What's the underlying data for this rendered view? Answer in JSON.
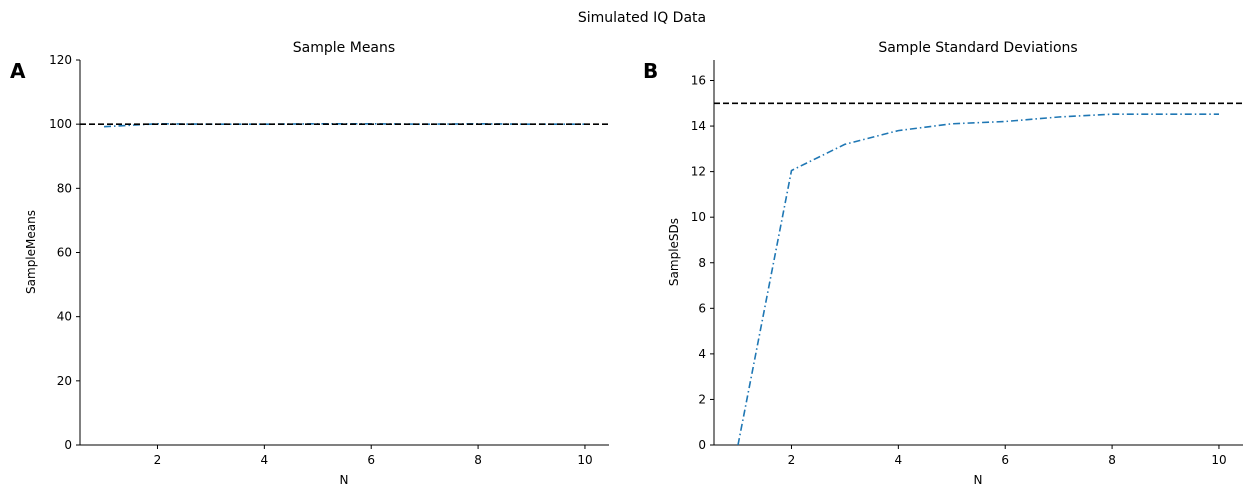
{
  "suptitle": "Simulated IQ Data",
  "chart_data": [
    {
      "type": "line",
      "panel": "A",
      "title": "Sample Means",
      "xlabel": "N",
      "ylabel": "SampleMeans",
      "xlim": [
        0.55,
        10.45
      ],
      "ylim": [
        0,
        120
      ],
      "xticks": [
        2,
        4,
        6,
        8,
        10
      ],
      "yticks": [
        0,
        20,
        40,
        60,
        80,
        100,
        120
      ],
      "grid": false,
      "series": [
        {
          "line_style": "dash-dot",
          "color": "#1f77b4",
          "x": [
            1,
            2,
            3,
            4,
            5,
            6,
            7,
            8,
            9,
            10
          ],
          "y": [
            99.2,
            100.1,
            100.0,
            100.0,
            100.1,
            100.1,
            100.0,
            100.1,
            100.0,
            100.0
          ]
        }
      ],
      "reference_line": {
        "y": 100,
        "line_style": "dashed",
        "color": "#000000"
      }
    },
    {
      "type": "line",
      "panel": "B",
      "title": "Sample Standard Deviations",
      "xlabel": "N",
      "ylabel": "SampleSDs",
      "xlim": [
        0.55,
        10.45
      ],
      "ylim": [
        0,
        16.9
      ],
      "xticks": [
        2,
        4,
        6,
        8,
        10
      ],
      "yticks": [
        0,
        2,
        4,
        6,
        8,
        10,
        12,
        14,
        16
      ],
      "grid": false,
      "series": [
        {
          "line_style": "dash-dot",
          "color": "#1f77b4",
          "x": [
            1,
            2,
            3,
            4,
            5,
            6,
            7,
            8,
            9,
            10
          ],
          "y": [
            0,
            12.05,
            13.2,
            13.8,
            14.1,
            14.2,
            14.4,
            14.52,
            14.52,
            14.52
          ]
        }
      ],
      "reference_line": {
        "y": 15,
        "line_style": "dashed",
        "color": "#000000"
      }
    }
  ]
}
